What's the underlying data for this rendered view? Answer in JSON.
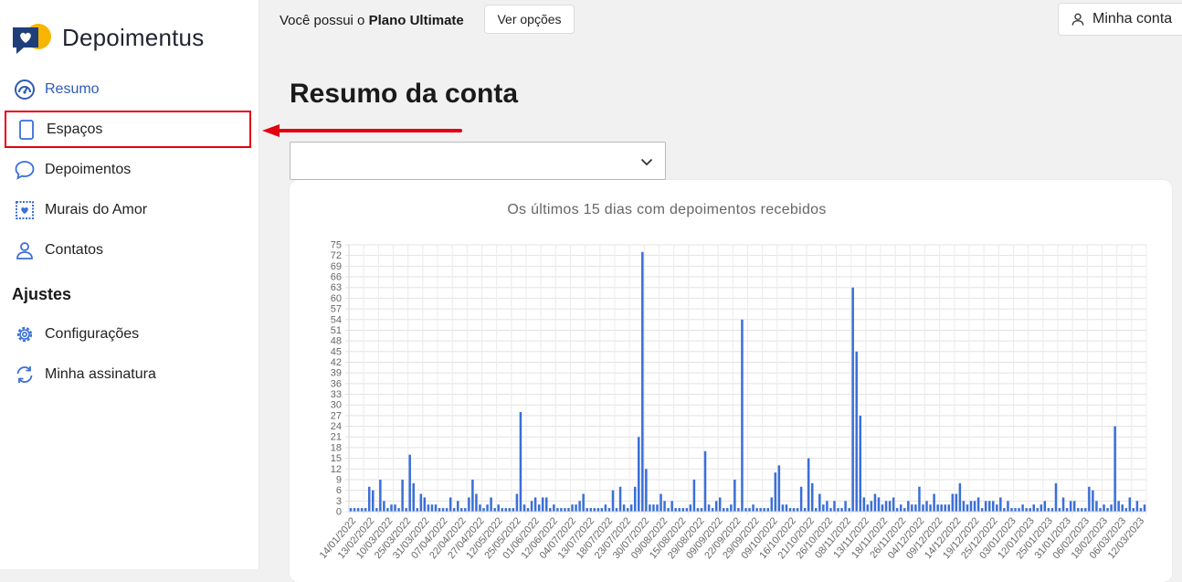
{
  "app": {
    "name": "Depoimentus"
  },
  "sidebar": {
    "items": [
      {
        "label": "Resumo",
        "icon": "dashboard-icon"
      },
      {
        "label": "Espaços",
        "icon": "tablet-icon"
      },
      {
        "label": "Depoimentos",
        "icon": "chat-bubble-icon"
      },
      {
        "label": "Murais do Amor",
        "icon": "heart-frame-icon"
      },
      {
        "label": "Contatos",
        "icon": "user-icon"
      }
    ],
    "section_title": "Ajustes",
    "settings_items": [
      {
        "label": "Configurações",
        "icon": "gear-icon"
      },
      {
        "label": "Minha assinatura",
        "icon": "refresh-icon"
      }
    ]
  },
  "topbar": {
    "plan_prefix": "Você possui o ",
    "plan_name": "Plano Ultimate",
    "options_button": "Ver opções",
    "account_button": "Minha conta"
  },
  "main": {
    "title": "Resumo da conta",
    "select_value": ""
  },
  "colors": {
    "accent": "#2f5bb7",
    "bar": "#3a6fd8",
    "highlight": "#e3000f"
  },
  "chart_data": {
    "type": "bar",
    "title": "Os últimos 15 dias com depoimentos recebidos",
    "ylim": [
      0,
      75
    ],
    "yticks": [
      0,
      3,
      6,
      9,
      12,
      15,
      18,
      21,
      24,
      27,
      30,
      33,
      36,
      39,
      42,
      45,
      48,
      51,
      54,
      57,
      60,
      63,
      66,
      69,
      72,
      75
    ],
    "x_tick_labels": [
      "14/01/2022",
      "13/02/2022",
      "10/03/2022",
      "25/03/2022",
      "31/03/2022",
      "07/04/2022",
      "22/04/2022",
      "27/04/2022",
      "12/05/2022",
      "25/05/2022",
      "01/06/2022",
      "12/06/2022",
      "04/07/2022",
      "13/07/2022",
      "18/07/2022",
      "23/07/2022",
      "30/07/2022",
      "09/08/2022",
      "15/08/2022",
      "29/08/2022",
      "09/09/2022",
      "22/09/2022",
      "29/09/2022",
      "09/10/2022",
      "16/10/2022",
      "21/10/2022",
      "26/10/2022",
      "08/11/2022",
      "13/11/2022",
      "18/11/2022",
      "26/11/2022",
      "04/12/2022",
      "09/12/2022",
      "14/12/2022",
      "19/12/2022",
      "25/12/2022",
      "03/01/2023",
      "12/01/2023",
      "25/01/2023",
      "31/01/2023",
      "06/02/2023",
      "18/02/2023",
      "06/03/2023",
      "12/03/2023"
    ],
    "values": [
      1,
      1,
      1,
      1,
      1,
      7,
      6,
      1,
      9,
      3,
      1,
      2,
      2,
      1,
      9,
      1,
      16,
      8,
      1,
      5,
      4,
      2,
      2,
      2,
      1,
      1,
      1,
      4,
      1,
      3,
      1,
      1,
      4,
      9,
      5,
      2,
      1,
      2,
      4,
      1,
      2,
      1,
      1,
      1,
      1,
      5,
      28,
      2,
      1,
      3,
      4,
      2,
      4,
      4,
      1,
      2,
      1,
      1,
      1,
      1,
      2,
      2,
      3,
      5,
      1,
      1,
      1,
      1,
      1,
      2,
      1,
      6,
      1,
      7,
      2,
      1,
      2,
      7,
      21,
      73,
      12,
      2,
      2,
      2,
      5,
      3,
      1,
      3,
      1,
      1,
      1,
      1,
      2,
      9,
      1,
      1,
      17,
      2,
      1,
      3,
      4,
      1,
      1,
      2,
      9,
      1,
      54,
      1,
      1,
      2,
      1,
      1,
      1,
      1,
      4,
      11,
      13,
      2,
      2,
      1,
      1,
      1,
      7,
      1,
      15,
      8,
      1,
      5,
      2,
      3,
      1,
      3,
      1,
      1,
      3,
      1,
      63,
      45,
      27,
      4,
      2,
      3,
      5,
      4,
      2,
      3,
      3,
      4,
      1,
      2,
      1,
      3,
      2,
      2,
      7,
      2,
      3,
      2,
      5,
      2,
      2,
      2,
      2,
      5,
      5,
      8,
      3,
      2,
      3,
      3,
      4,
      1,
      3,
      3,
      3,
      2,
      4,
      1,
      3,
      1,
      1,
      1,
      2,
      1,
      1,
      2,
      1,
      2,
      3,
      1,
      1,
      8,
      1,
      4,
      1,
      3,
      3,
      1,
      1,
      1,
      7,
      6,
      3,
      1,
      2,
      1,
      2,
      24,
      3,
      2,
      1,
      4,
      1,
      3,
      1,
      2
    ]
  }
}
